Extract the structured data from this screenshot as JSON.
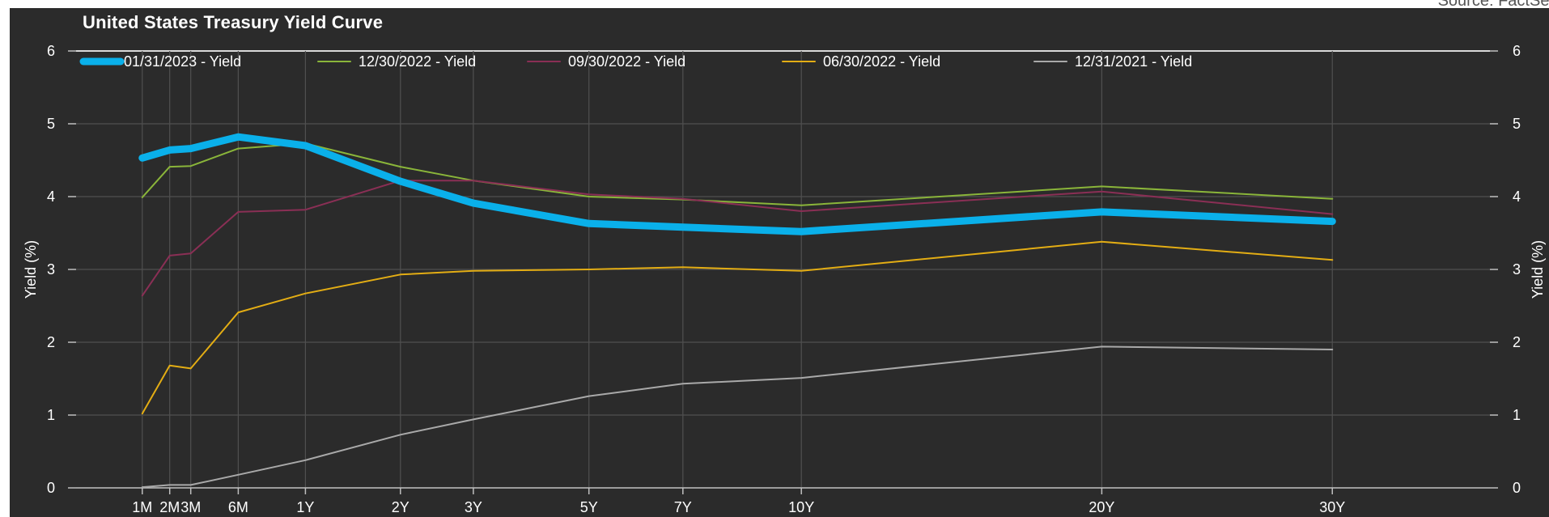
{
  "source": "Source: FactSet",
  "chart_data": {
    "type": "line",
    "title": "United States Treasury Yield Curve",
    "ylabel": "Yield (%)",
    "ylabel_right": "Yield (%)",
    "ylim": [
      0,
      6
    ],
    "y_ticks": [
      "0",
      "1",
      "2",
      "3",
      "4",
      "5",
      "6"
    ],
    "x_max_years": 38,
    "categories": [
      "1M",
      "2M",
      "3M",
      "6M",
      "1Y",
      "2Y",
      "3Y",
      "5Y",
      "7Y",
      "10Y",
      "20Y",
      "30Y"
    ],
    "x_years": [
      0.0833,
      0.1667,
      0.25,
      0.5,
      1,
      2,
      3,
      5,
      7,
      10,
      20,
      30
    ],
    "legend_position": "top-left",
    "grid": true,
    "series": [
      {
        "name": "01/31/2023 - Yield",
        "color": "#0ab0ea",
        "width": 9,
        "values": [
          4.53,
          4.64,
          4.66,
          4.82,
          4.7,
          4.21,
          3.91,
          3.63,
          3.58,
          3.52,
          3.79,
          3.66
        ]
      },
      {
        "name": "12/30/2022 - Yield",
        "color": "#8ab53a",
        "width": 2,
        "values": [
          3.99,
          4.41,
          4.42,
          4.66,
          4.73,
          4.41,
          4.22,
          4.0,
          3.96,
          3.88,
          4.14,
          3.97
        ]
      },
      {
        "name": "09/30/2022 - Yield",
        "color": "#8a2f55",
        "width": 2,
        "values": [
          2.64,
          3.19,
          3.22,
          3.79,
          3.82,
          4.22,
          4.22,
          4.03,
          3.97,
          3.8,
          4.07,
          3.76
        ]
      },
      {
        "name": "06/30/2022 - Yield",
        "color": "#e3ad14",
        "width": 2,
        "values": [
          1.02,
          1.68,
          1.64,
          2.41,
          2.67,
          2.93,
          2.98,
          3.0,
          3.03,
          2.98,
          3.38,
          3.13
        ]
      },
      {
        "name": "12/31/2021 - Yield",
        "color": "#a9a9a9",
        "width": 2,
        "values": [
          0.01,
          0.04,
          0.04,
          0.18,
          0.38,
          0.73,
          0.94,
          1.26,
          1.43,
          1.51,
          1.94,
          1.9
        ]
      }
    ]
  }
}
